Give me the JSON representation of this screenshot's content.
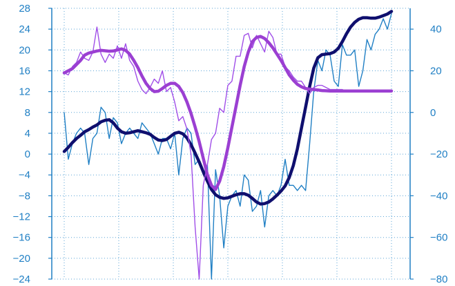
{
  "chart_data": {
    "type": "line",
    "grid": true,
    "left_axis": {
      "ylim": [
        -24,
        28
      ],
      "ticks": [
        "28",
        "24",
        "20",
        "16",
        "12",
        "8",
        "4",
        "0",
        "−4",
        "−8",
        "−12",
        "−16",
        "−20",
        "−24"
      ],
      "tick_values": [
        28,
        24,
        20,
        16,
        12,
        8,
        4,
        0,
        -4,
        -8,
        -12,
        -16,
        -20,
        -24
      ]
    },
    "right_axis": {
      "ylim": [
        -80,
        50
      ],
      "ticks": [
        "40",
        "20",
        "0",
        "−20",
        "−40",
        "−60",
        "−80"
      ],
      "tick_values": [
        40,
        20,
        0,
        -20,
        -40,
        -60,
        -80
      ]
    },
    "x": [
      0,
      1,
      2,
      3,
      4,
      5,
      6,
      7,
      8,
      9,
      10,
      11,
      12,
      13,
      14,
      15,
      16,
      17,
      18,
      19,
      20,
      21,
      22,
      23,
      24,
      25,
      26,
      27,
      28,
      29,
      30,
      31,
      32,
      33,
      34,
      35,
      36,
      37,
      38,
      39,
      40,
      41,
      42,
      43,
      44,
      45,
      46,
      47,
      48,
      49,
      50,
      51,
      52,
      53,
      54,
      55,
      56,
      57,
      58,
      59,
      60,
      61,
      62,
      63,
      64,
      65,
      66,
      67,
      68,
      69,
      70,
      71,
      72,
      73,
      74,
      75,
      76,
      77,
      78,
      79,
      80
    ],
    "xlim": [
      0,
      80
    ],
    "series": [
      {
        "color": "#1f7fc4",
        "axis": "left",
        "style": "thin",
        "values": [
          8,
          -1,
          2,
          4,
          5,
          4,
          -2,
          3,
          4,
          9,
          8,
          3,
          7,
          6,
          2,
          4,
          5,
          4,
          3,
          6,
          5,
          4,
          2,
          0,
          3,
          3,
          1,
          4,
          -4,
          3,
          5,
          4,
          -2,
          -1,
          -4,
          -2,
          -24,
          -3,
          -8,
          -18,
          -10,
          -8,
          -7,
          -10,
          -4,
          -5,
          -11,
          -10,
          -7,
          -14,
          -8,
          -7,
          -8,
          -6,
          -1,
          -6,
          -6,
          -7,
          -6,
          -7,
          2,
          12,
          18,
          16,
          20,
          19,
          14,
          13,
          21,
          19,
          19,
          20,
          13,
          16,
          22,
          20,
          23,
          24,
          26,
          24,
          27
        ]
      },
      {
        "color": "#0f0f6e",
        "axis": "left",
        "style": "thick",
        "values": [
          0.5,
          1.3,
          2.2,
          3,
          3.6,
          4.3,
          4.7,
          5.2,
          5.6,
          6.2,
          6.5,
          6.6,
          6,
          5,
          4.3,
          4,
          4.1,
          4.3,
          4.5,
          4.3,
          4.1,
          3.8,
          3.2,
          2.7,
          2.6,
          2.8,
          3.4,
          4,
          4.2,
          3.9,
          3.1,
          1.8,
          0.2,
          -1.5,
          -3.4,
          -5.2,
          -6.8,
          -7.8,
          -8.3,
          -8.5,
          -8.4,
          -8.1,
          -7.8,
          -7.6,
          -7.6,
          -7.9,
          -8.5,
          -9.2,
          -9.6,
          -9.5,
          -9.2,
          -8.6,
          -7.9,
          -7.1,
          -6.1,
          -4.5,
          -2.2,
          1,
          5,
          9,
          13,
          16.5,
          18.5,
          19.1,
          19.2,
          19.3,
          19.6,
          20.3,
          21.6,
          23.1,
          24.4,
          25.3,
          25.9,
          26.2,
          26.2,
          26.1,
          26.1,
          26.3,
          26.6,
          26.9,
          27.4
        ]
      },
      {
        "color": "#a04ee8",
        "axis": "right",
        "style": "thin",
        "values": [
          19,
          18,
          22,
          24,
          29,
          26,
          25,
          29,
          41,
          28,
          24,
          28,
          26,
          32,
          26,
          33,
          25,
          22,
          15,
          11,
          9,
          12,
          16,
          14,
          20,
          10,
          12,
          5,
          -4,
          -2,
          -8,
          -20,
          -55,
          -80,
          -35,
          -25,
          -13,
          -10,
          2,
          0,
          13,
          15,
          27,
          27,
          37,
          38,
          31,
          37,
          33,
          29,
          39,
          36,
          28,
          28,
          22,
          20,
          17,
          15,
          15,
          12,
          9,
          12,
          13,
          13,
          12,
          11,
          11,
          11,
          11,
          10,
          10,
          10,
          10,
          10,
          10,
          10,
          10,
          10,
          10,
          10,
          10
        ]
      },
      {
        "color": "#9b3fd2",
        "axis": "right",
        "style": "thick",
        "values": [
          19,
          20,
          21,
          23,
          25,
          27.5,
          28.5,
          29,
          29.5,
          29.8,
          29.6,
          29.4,
          29.5,
          30,
          30.5,
          29.8,
          28,
          25,
          21.5,
          17.5,
          14,
          11.5,
          10,
          10.2,
          11.5,
          13,
          14,
          14,
          12.5,
          9.5,
          5,
          -0.5,
          -7,
          -14,
          -22,
          -30,
          -35,
          -37,
          -33,
          -26,
          -17,
          -7,
          3,
          13,
          22,
          29,
          34,
          36,
          36.5,
          35.5,
          33.5,
          31,
          28,
          25,
          21.5,
          18,
          15.5,
          13.5,
          12.3,
          11.5,
          11.2,
          11,
          10.8,
          10.5,
          10.4,
          10.3,
          10.3,
          10.3,
          10.3,
          10.3,
          10.3,
          10.3,
          10.3,
          10.3,
          10.3,
          10.3,
          10.3,
          10.3,
          10.3,
          10.3,
          10.3
        ]
      }
    ]
  }
}
